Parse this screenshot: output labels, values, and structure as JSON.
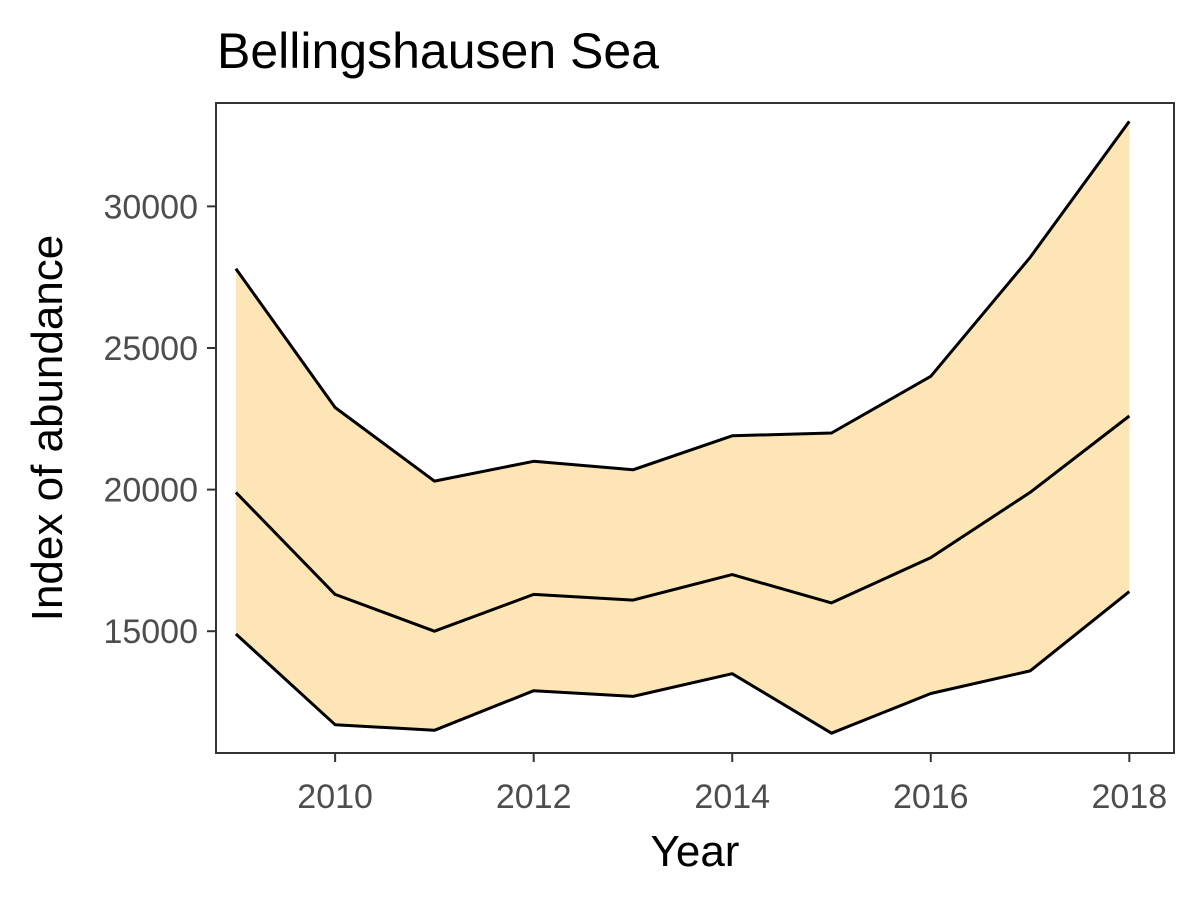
{
  "chart_data": {
    "type": "area",
    "title": "Bellingshausen Sea",
    "xlabel": "Year",
    "ylabel": "Index of abundance",
    "x": [
      2009,
      2010,
      2011,
      2012,
      2013,
      2014,
      2015,
      2016,
      2017,
      2018
    ],
    "series": [
      {
        "values": [
          27800,
          22900,
          20300,
          21000,
          20700,
          21900,
          22000,
          24000,
          28200,
          33000
        ]
      },
      {
        "values": [
          19900,
          16300,
          15000,
          16300,
          16100,
          17000,
          16000,
          17600,
          19900,
          22600
        ]
      },
      {
        "values": [
          14900,
          11700,
          11500,
          12900,
          12700,
          13500,
          11400,
          12800,
          13600,
          16400
        ]
      }
    ],
    "band": {
      "upper_series": 0,
      "lower_series": 2,
      "fill_color": "#fde5b6"
    },
    "line_color": "#000000",
    "xlim": [
      2008.8,
      2018.45
    ],
    "ylim": [
      10700,
      33650
    ],
    "x_ticks": [
      2010,
      2012,
      2014,
      2016,
      2018
    ],
    "x_tick_labels": [
      "2010",
      "2012",
      "2014",
      "2016",
      "2018"
    ],
    "y_ticks": [
      15000,
      20000,
      25000,
      30000
    ],
    "y_tick_labels": [
      "15000",
      "20000",
      "25000",
      "30000"
    ],
    "grid": false,
    "legend": "none"
  }
}
